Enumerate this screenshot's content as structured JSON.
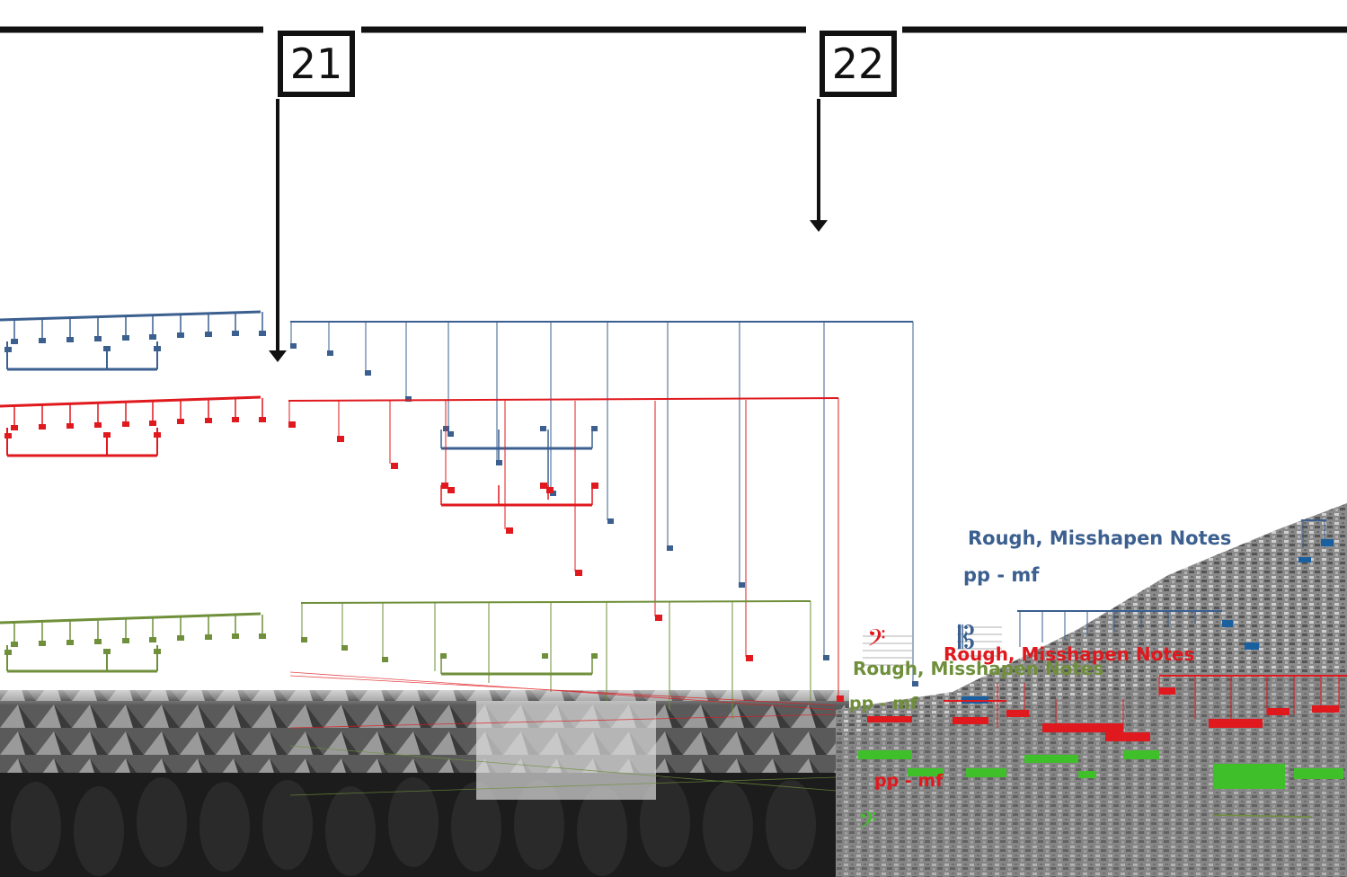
{
  "rehearsal_marks": [
    "21",
    "22"
  ],
  "directions": {
    "blue": "Rough, Misshapen Notes",
    "red": "Rough, Misshapen Notes",
    "green": "Rough, Misshapen Notes"
  },
  "dynamics": {
    "blue": "pp - mf",
    "red": "pp - mf",
    "green": "pp - mf"
  },
  "colors": {
    "blue": "#3b5f8f",
    "red": "#e0191e",
    "green": "#6f8f3a",
    "bright_green": "#3fbf2a",
    "black": "#111111"
  },
  "icons": {
    "bass_clef_red": "bass-clef-icon",
    "alto_clef_blue": "alto-clef-icon",
    "bass_clef_green": "bass-clef-icon"
  },
  "background": {
    "left_photo": "crowd-and-tents-photo",
    "right_photo": "destroyed-city-photo"
  }
}
